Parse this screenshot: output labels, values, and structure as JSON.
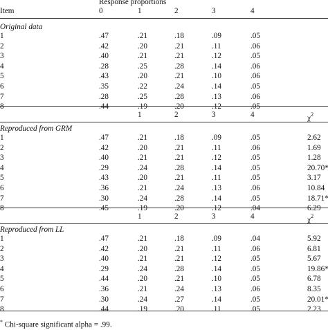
{
  "header": {
    "response_proportions": "Response proportions",
    "item": "Item",
    "cols": [
      "0",
      "1",
      "2",
      "3",
      "4"
    ],
    "chi": "χ",
    "chi_sup": "2"
  },
  "sections": [
    {
      "title": "Original data",
      "rows": [
        {
          "item": "1",
          "v": [
            ".47",
            ".21",
            ".18",
            ".09",
            ".05"
          ]
        },
        {
          "item": "2",
          "v": [
            ".42",
            ".20",
            ".21",
            ".11",
            ".06"
          ]
        },
        {
          "item": "3",
          "v": [
            ".40",
            ".21",
            ".21",
            ".12",
            ".05"
          ]
        },
        {
          "item": "4",
          "v": [
            ".28",
            ".25",
            ".28",
            ".14",
            ".06"
          ]
        },
        {
          "item": "5",
          "v": [
            ".43",
            ".20",
            ".21",
            ".10",
            ".06"
          ]
        },
        {
          "item": "6",
          "v": [
            ".35",
            ".22",
            ".24",
            ".14",
            ".05"
          ]
        },
        {
          "item": "7",
          "v": [
            ".28",
            ".25",
            ".28",
            ".13",
            ".06"
          ]
        },
        {
          "item": "8",
          "v": [
            ".44",
            ".19",
            ".20",
            ".12",
            ".05"
          ]
        }
      ]
    },
    {
      "title": "Reproduced from GRM",
      "rows": [
        {
          "item": "1",
          "v": [
            ".47",
            ".21",
            ".18",
            ".09",
            ".05"
          ],
          "chi": "2.62"
        },
        {
          "item": "2",
          "v": [
            ".42",
            ".20",
            ".21",
            ".11",
            ".06"
          ],
          "chi": "1.69"
        },
        {
          "item": "3",
          "v": [
            ".40",
            ".21",
            ".21",
            ".12",
            ".05"
          ],
          "chi": "1.28"
        },
        {
          "item": "4",
          "v": [
            ".29",
            ".24",
            ".28",
            ".14",
            ".05"
          ],
          "chi": "20.70*"
        },
        {
          "item": "5",
          "v": [
            ".43",
            ".20",
            ".21",
            ".11",
            ".05"
          ],
          "chi": "3.17"
        },
        {
          "item": "6",
          "v": [
            ".36",
            ".21",
            ".24",
            ".13",
            ".06"
          ],
          "chi": "10.84"
        },
        {
          "item": "7",
          "v": [
            ".30",
            ".24",
            ".28",
            ".14",
            ".05"
          ],
          "chi": "18.71*"
        },
        {
          "item": "8",
          "v": [
            ".45",
            ".19",
            ".20",
            ".12",
            ".04"
          ],
          "chi": "6.29"
        }
      ]
    },
    {
      "title": "Reproduced from LL",
      "rows": [
        {
          "item": "1",
          "v": [
            ".47",
            ".21",
            ".18",
            ".09",
            ".04"
          ],
          "chi": "5.92"
        },
        {
          "item": "2",
          "v": [
            ".42",
            ".20",
            ".21",
            ".11",
            ".06"
          ],
          "chi": "6.81"
        },
        {
          "item": "3",
          "v": [
            ".40",
            ".21",
            ".21",
            ".12",
            ".05"
          ],
          "chi": "5.67"
        },
        {
          "item": "4",
          "v": [
            ".29",
            ".24",
            ".28",
            ".14",
            ".05"
          ],
          "chi": "19.86*"
        },
        {
          "item": "5",
          "v": [
            ".44",
            ".20",
            ".21",
            ".10",
            ".05"
          ],
          "chi": "6.78"
        },
        {
          "item": "6",
          "v": [
            ".36",
            ".21",
            ".24",
            ".13",
            ".06"
          ],
          "chi": "8.35"
        },
        {
          "item": "7",
          "v": [
            ".30",
            ".24",
            ".27",
            ".14",
            ".05"
          ],
          "chi": "20.01*"
        },
        {
          "item": "8",
          "v": [
            ".44",
            ".19",
            ".20",
            ".11",
            ".05"
          ],
          "chi": "2.23"
        }
      ]
    }
  ],
  "footnote": {
    "mark": "*",
    "text": " Chi-square significant alpha = .99."
  }
}
